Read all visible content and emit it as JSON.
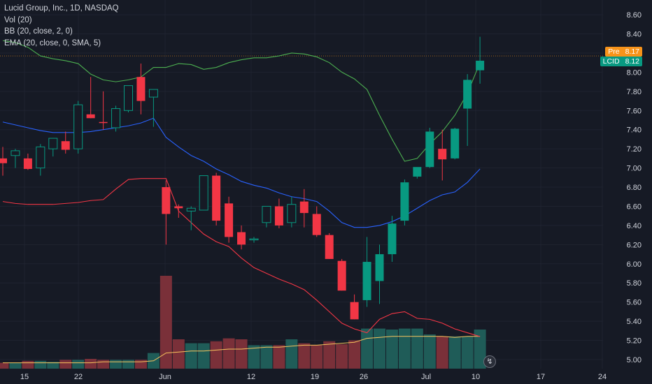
{
  "legend": {
    "symbol": "Lucid Group, Inc., 1D, NASDAQ",
    "vol": "Vol (20)",
    "bb": "BB (20, close, 2, 0)",
    "ema": "EMA (20, close, 0, SMA, 5)"
  },
  "price_tags": {
    "pre_label": "Pre",
    "pre_value": "8.17",
    "pre_color": "#f7931a",
    "last_label": "LCID",
    "last_value": "8.12",
    "last_color": "#089981"
  },
  "colors": {
    "up": "#089981",
    "down": "#f23645",
    "upper_band": "#4caf50",
    "lower_band": "#f23645",
    "ema": "#2962ff",
    "vol_ma": "#f7c35d"
  },
  "chart_data": {
    "type": "candlestick",
    "x_axis_labels": [
      "15",
      "22",
      "Jun",
      "12",
      "19",
      "26",
      "Jul",
      "10",
      "17",
      "24"
    ],
    "y_axis_labels": [
      "5.00",
      "5.20",
      "5.40",
      "5.60",
      "5.80",
      "6.00",
      "6.20",
      "6.40",
      "6.60",
      "6.80",
      "7.00",
      "7.20",
      "7.40",
      "7.60",
      "7.80",
      "8.00",
      "8.20",
      "8.40",
      "8.60"
    ],
    "ylim": [
      4.93,
      8.68
    ],
    "candles": [
      {
        "o": 7.1,
        "h": 7.22,
        "l": 6.92,
        "c": 7.05
      },
      {
        "o": 7.13,
        "h": 7.2,
        "l": 7.0,
        "c": 7.18
      },
      {
        "o": 7.1,
        "h": 7.15,
        "l": 6.98,
        "c": 6.99
      },
      {
        "o": 7.0,
        "h": 7.25,
        "l": 6.92,
        "c": 7.22
      },
      {
        "o": 7.2,
        "h": 7.3,
        "l": 7.12,
        "c": 7.31
      },
      {
        "o": 7.28,
        "h": 7.38,
        "l": 7.15,
        "c": 7.19
      },
      {
        "o": 7.2,
        "h": 7.7,
        "l": 7.15,
        "c": 7.66
      },
      {
        "o": 7.56,
        "h": 7.95,
        "l": 7.52,
        "c": 7.52
      },
      {
        "o": 7.48,
        "h": 7.8,
        "l": 7.4,
        "c": 7.47
      },
      {
        "o": 7.42,
        "h": 7.65,
        "l": 7.38,
        "c": 7.62
      },
      {
        "o": 7.6,
        "h": 7.86,
        "l": 7.58,
        "c": 7.86
      },
      {
        "o": 7.95,
        "h": 8.09,
        "l": 7.56,
        "c": 7.7
      },
      {
        "o": 7.74,
        "h": 7.82,
        "l": 7.43,
        "c": 7.82
      },
      {
        "o": 6.8,
        "h": 6.87,
        "l": 6.2,
        "c": 6.52
      },
      {
        "o": 6.6,
        "h": 6.62,
        "l": 6.48,
        "c": 6.58
      },
      {
        "o": 6.55,
        "h": 6.6,
        "l": 6.35,
        "c": 6.58
      },
      {
        "o": 6.56,
        "h": 6.92,
        "l": 6.56,
        "c": 6.92
      },
      {
        "o": 6.92,
        "h": 6.95,
        "l": 6.4,
        "c": 6.45
      },
      {
        "o": 6.63,
        "h": 6.7,
        "l": 6.22,
        "c": 6.28
      },
      {
        "o": 6.33,
        "h": 6.4,
        "l": 6.15,
        "c": 6.2
      },
      {
        "o": 6.25,
        "h": 6.28,
        "l": 6.22,
        "c": 6.26
      },
      {
        "o": 6.43,
        "h": 6.6,
        "l": 6.38,
        "c": 6.6
      },
      {
        "o": 6.6,
        "h": 6.68,
        "l": 6.37,
        "c": 6.4
      },
      {
        "o": 6.43,
        "h": 6.7,
        "l": 6.38,
        "c": 6.62
      },
      {
        "o": 6.65,
        "h": 6.78,
        "l": 6.38,
        "c": 6.53
      },
      {
        "o": 6.52,
        "h": 6.6,
        "l": 6.28,
        "c": 6.3
      },
      {
        "o": 6.3,
        "h": 6.32,
        "l": 6.05,
        "c": 6.05
      },
      {
        "o": 6.03,
        "h": 6.05,
        "l": 5.72,
        "c": 5.72
      },
      {
        "o": 5.6,
        "h": 5.68,
        "l": 5.42,
        "c": 5.42
      },
      {
        "o": 5.62,
        "h": 6.28,
        "l": 5.55,
        "c": 6.02
      },
      {
        "o": 5.82,
        "h": 6.2,
        "l": 5.58,
        "c": 6.1
      },
      {
        "o": 6.1,
        "h": 6.5,
        "l": 6.02,
        "c": 6.42
      },
      {
        "o": 6.45,
        "h": 6.88,
        "l": 6.4,
        "c": 6.85
      },
      {
        "o": 6.91,
        "h": 7.0,
        "l": 6.89,
        "c": 7.01
      },
      {
        "o": 7.01,
        "h": 7.42,
        "l": 7.0,
        "c": 7.38
      },
      {
        "o": 7.2,
        "h": 7.4,
        "l": 6.87,
        "c": 7.09
      },
      {
        "o": 7.1,
        "h": 7.42,
        "l": 7.09,
        "c": 7.41
      },
      {
        "o": 7.62,
        "h": 7.98,
        "l": 7.23,
        "c": 7.92
      },
      {
        "o": 8.02,
        "h": 8.37,
        "l": 7.88,
        "c": 8.12
      }
    ],
    "candle_dates": [
      "May 12",
      "May 15",
      "May 16",
      "May 17",
      "May 18",
      "May 19",
      "May 22",
      "May 23",
      "May 24",
      "May 25",
      "May 26",
      "May 30",
      "May 31",
      "Jun 1",
      "Jun 2",
      "Jun 5",
      "Jun 6",
      "Jun 7",
      "Jun 8",
      "Jun 9",
      "Jun 12",
      "Jun 13",
      "Jun 14",
      "Jun 15",
      "Jun 16",
      "Jun 20",
      "Jun 21",
      "Jun 22",
      "Jun 23",
      "Jun 26",
      "Jun 27",
      "Jun 28",
      "Jun 29",
      "Jun 30",
      "Jul 3",
      "Jul 5",
      "Jul 6",
      "Jul 7",
      "Jul 10"
    ],
    "volume_rel": [
      0.06,
      0.06,
      0.08,
      0.08,
      0.07,
      0.09,
      0.09,
      0.1,
      0.09,
      0.09,
      0.09,
      0.09,
      0.16,
      0.95,
      0.3,
      0.26,
      0.26,
      0.28,
      0.31,
      0.3,
      0.24,
      0.24,
      0.24,
      0.3,
      0.26,
      0.24,
      0.28,
      0.25,
      0.29,
      0.41,
      0.41,
      0.4,
      0.41,
      0.41,
      0.35,
      0.33,
      0.33,
      0.33,
      0.4
    ],
    "volume_ma_rel": [
      0.06,
      0.06,
      0.06,
      0.06,
      0.06,
      0.06,
      0.06,
      0.06,
      0.07,
      0.07,
      0.07,
      0.07,
      0.08,
      0.16,
      0.17,
      0.18,
      0.18,
      0.19,
      0.2,
      0.2,
      0.21,
      0.22,
      0.22,
      0.23,
      0.24,
      0.24,
      0.25,
      0.26,
      0.27,
      0.31,
      0.32,
      0.33,
      0.33,
      0.33,
      0.33,
      0.33,
      0.32,
      0.33,
      0.33
    ],
    "bb_upper": [
      8.33,
      8.31,
      8.26,
      8.17,
      8.14,
      8.12,
      8.09,
      7.98,
      7.92,
      7.9,
      7.92,
      7.95,
      8.05,
      8.05,
      8.09,
      8.08,
      8.03,
      8.05,
      8.1,
      8.13,
      8.15,
      8.15,
      8.17,
      8.2,
      8.19,
      8.16,
      8.1,
      8.0,
      7.93,
      7.82,
      7.55,
      7.3,
      7.07,
      7.1,
      7.25,
      7.38,
      7.55,
      7.78,
      8.1
    ],
    "bb_lower": [
      6.65,
      6.63,
      6.62,
      6.62,
      6.62,
      6.63,
      6.64,
      6.66,
      6.67,
      6.78,
      6.88,
      6.89,
      6.89,
      6.89,
      6.55,
      6.43,
      6.31,
      6.23,
      6.18,
      6.06,
      5.96,
      5.9,
      5.84,
      5.79,
      5.73,
      5.62,
      5.5,
      5.38,
      5.32,
      5.28,
      5.42,
      5.48,
      5.5,
      5.43,
      5.42,
      5.38,
      5.32,
      5.28,
      5.24
    ],
    "ema": [
      7.48,
      7.45,
      7.42,
      7.39,
      7.37,
      7.37,
      7.37,
      7.38,
      7.4,
      7.42,
      7.44,
      7.47,
      7.52,
      7.32,
      7.22,
      7.13,
      7.07,
      6.99,
      6.93,
      6.86,
      6.82,
      6.79,
      6.74,
      6.7,
      6.68,
      6.65,
      6.55,
      6.43,
      6.38,
      6.38,
      6.4,
      6.44,
      6.5,
      6.58,
      6.66,
      6.72,
      6.75,
      6.85,
      6.99
    ]
  }
}
